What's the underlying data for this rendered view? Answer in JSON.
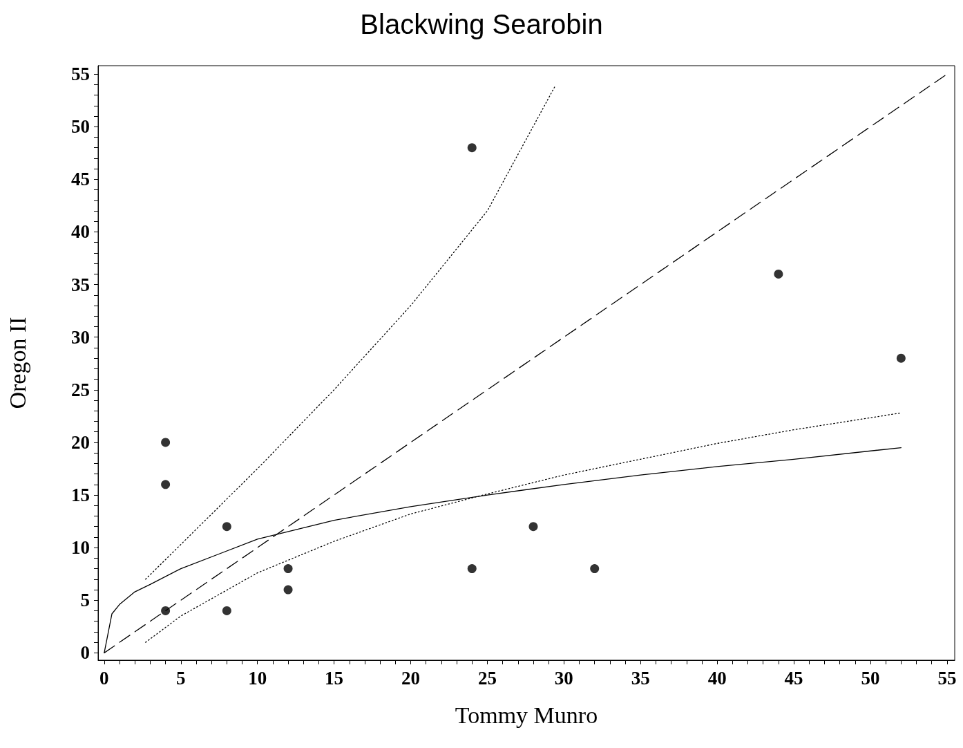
{
  "chart_data": {
    "type": "scatter",
    "title": "Blackwing Searobin",
    "xlabel": "Tommy Munro",
    "ylabel": "Oregon II",
    "xlim": [
      -0.4,
      55.5
    ],
    "ylim": [
      -0.7,
      55.8
    ],
    "xticks": [
      0,
      {
        "value": 1,
        "label": null
      },
      {
        "value": 2,
        "label": null
      },
      {
        "value": 3,
        "label": null
      },
      {
        "value": 4,
        "label": null
      },
      5,
      {
        "value": 6,
        "label": null
      },
      {
        "value": 7,
        "label": null
      },
      {
        "value": 8,
        "label": null
      },
      {
        "value": 9,
        "label": null
      },
      10,
      {
        "value": 11,
        "label": null
      },
      {
        "value": 12,
        "label": null
      },
      {
        "value": 13,
        "label": null
      },
      {
        "value": 14,
        "label": null
      },
      15,
      {
        "value": 16,
        "label": null
      },
      {
        "value": 17,
        "label": null
      },
      {
        "value": 18,
        "label": null
      },
      {
        "value": 19,
        "label": null
      },
      20,
      {
        "value": 21,
        "label": null
      },
      {
        "value": 22,
        "label": null
      },
      {
        "value": 23,
        "label": null
      },
      {
        "value": 24,
        "label": null
      },
      25,
      {
        "value": 26,
        "label": null
      },
      {
        "value": 27,
        "label": null
      },
      {
        "value": 28,
        "label": null
      },
      {
        "value": 29,
        "label": null
      },
      30,
      {
        "value": 31,
        "label": null
      },
      {
        "value": 32,
        "label": null
      },
      {
        "value": 33,
        "label": null
      },
      {
        "value": 34,
        "label": null
      },
      35,
      {
        "value": 36,
        "label": null
      },
      {
        "value": 37,
        "label": null
      },
      {
        "value": 38,
        "label": null
      },
      {
        "value": 39,
        "label": null
      },
      40,
      {
        "value": 41,
        "label": null
      },
      {
        "value": 42,
        "label": null
      },
      {
        "value": 43,
        "label": null
      },
      {
        "value": 44,
        "label": null
      },
      45,
      {
        "value": 46,
        "label": null
      },
      {
        "value": 47,
        "label": null
      },
      {
        "value": 48,
        "label": null
      },
      {
        "value": 49,
        "label": null
      },
      50,
      {
        "value": 51,
        "label": null
      },
      {
        "value": 52,
        "label": null
      },
      {
        "value": 53,
        "label": null
      },
      {
        "value": 54,
        "label": null
      },
      55
    ],
    "yticks": [
      0,
      {
        "value": 1,
        "label": null
      },
      {
        "value": 2,
        "label": null
      },
      {
        "value": 3,
        "label": null
      },
      {
        "value": 4,
        "label": null
      },
      5,
      {
        "value": 6,
        "label": null
      },
      {
        "value": 7,
        "label": null
      },
      {
        "value": 8,
        "label": null
      },
      {
        "value": 9,
        "label": null
      },
      10,
      {
        "value": 11,
        "label": null
      },
      {
        "value": 12,
        "label": null
      },
      {
        "value": 13,
        "label": null
      },
      {
        "value": 14,
        "label": null
      },
      15,
      {
        "value": 16,
        "label": null
      },
      {
        "value": 17,
        "label": null
      },
      {
        "value": 18,
        "label": null
      },
      {
        "value": 19,
        "label": null
      },
      20,
      {
        "value": 21,
        "label": null
      },
      {
        "value": 22,
        "label": null
      },
      {
        "value": 23,
        "label": null
      },
      {
        "value": 24,
        "label": null
      },
      25,
      {
        "value": 26,
        "label": null
      },
      {
        "value": 27,
        "label": null
      },
      {
        "value": 28,
        "label": null
      },
      {
        "value": 29,
        "label": null
      },
      30,
      {
        "value": 31,
        "label": null
      },
      {
        "value": 32,
        "label": null
      },
      {
        "value": 33,
        "label": null
      },
      {
        "value": 34,
        "label": null
      },
      35,
      {
        "value": 36,
        "label": null
      },
      {
        "value": 37,
        "label": null
      },
      {
        "value": 38,
        "label": null
      },
      {
        "value": 39,
        "label": null
      },
      40,
      {
        "value": 41,
        "label": null
      },
      {
        "value": 42,
        "label": null
      },
      {
        "value": 43,
        "label": null
      },
      {
        "value": 44,
        "label": null
      },
      45,
      {
        "value": 46,
        "label": null
      },
      {
        "value": 47,
        "label": null
      },
      {
        "value": 48,
        "label": null
      },
      {
        "value": 49,
        "label": null
      },
      50,
      {
        "value": 51,
        "label": null
      },
      {
        "value": 52,
        "label": null
      },
      {
        "value": 53,
        "label": null
      },
      {
        "value": 54,
        "label": null
      },
      55
    ],
    "grid": false,
    "series": [
      {
        "marker": "circle",
        "color": "#000000",
        "x": [
          4,
          4,
          4,
          8,
          8,
          12,
          12,
          24,
          24,
          28,
          32,
          44,
          52
        ],
        "values": [
          20,
          16,
          4,
          12,
          4,
          8,
          6,
          48,
          8,
          12,
          8,
          36,
          28
        ]
      },
      {
        "type": "line",
        "marker": "none",
        "line_style": "solid",
        "color": "#000000",
        "x": [
          0,
          0.5,
          1,
          2,
          3,
          5,
          7.5,
          10,
          15,
          20,
          25,
          30,
          35,
          40,
          45,
          52
        ],
        "values": [
          0,
          3.7,
          4.6,
          5.8,
          6.5,
          8.0,
          9.4,
          10.8,
          12.6,
          13.9,
          15.0,
          16.0,
          16.9,
          17.7,
          18.4,
          19.5
        ]
      },
      {
        "type": "line",
        "marker": "none",
        "line_style": "dashed",
        "color": "#000000",
        "x": [
          0,
          55
        ],
        "values": [
          0,
          55
        ]
      },
      {
        "type": "line",
        "marker": "none",
        "line_style": "dotted",
        "color": "#000000",
        "x": [
          2.7,
          5,
          10,
          15,
          20,
          25,
          29.4
        ],
        "values": [
          7.0,
          10.3,
          17.5,
          25,
          33,
          42,
          53.8
        ]
      },
      {
        "type": "line",
        "marker": "none",
        "line_style": "dotted",
        "color": "#000000",
        "x": [
          2.7,
          5,
          10,
          15,
          20,
          25,
          30,
          35,
          40,
          45,
          52
        ],
        "values": [
          1.0,
          3.5,
          7.6,
          10.6,
          13.2,
          15.1,
          16.9,
          18.4,
          19.9,
          21.2,
          22.8
        ]
      }
    ]
  }
}
